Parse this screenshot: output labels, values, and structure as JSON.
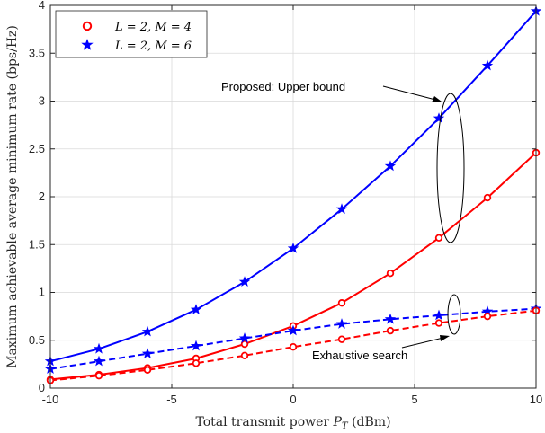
{
  "chart_data": {
    "type": "line",
    "title": "",
    "xlabel": "Total transmit power P_T (dBm)",
    "xlabel_parts": {
      "pre": "Total transmit power ",
      "var": "P",
      "sub": "T",
      "post": " (dBm)"
    },
    "ylabel": "Maximum achievable average minimum rate (bps/Hz)",
    "xlim": [
      -10,
      10
    ],
    "ylim": [
      0,
      4
    ],
    "xticks": [
      -10,
      -5,
      0,
      5,
      10
    ],
    "xtick_labels": [
      "-10",
      "-5",
      "0",
      "5",
      "10"
    ],
    "yticks": [
      0,
      0.5,
      1,
      1.5,
      2,
      2.5,
      3,
      3.5,
      4
    ],
    "ytick_labels": [
      "0",
      "0.5",
      "1",
      "1.5",
      "2",
      "2.5",
      "3",
      "3.5",
      "4"
    ],
    "grid": true,
    "legend_position": "top-left",
    "legend": [
      {
        "label": "L = 2, M = 4",
        "color": "#ff0000",
        "marker": "circle"
      },
      {
        "label": "L = 2, M = 6",
        "color": "#0000ff",
        "marker": "star"
      }
    ],
    "annotations": [
      {
        "text": "Proposed: Upper bound"
      },
      {
        "text": "Exhaustive search"
      }
    ],
    "x": [
      -10,
      -8,
      -6,
      -4,
      -2,
      0,
      2,
      4,
      6,
      8,
      10
    ],
    "series": [
      {
        "name": "L = 2, M = 6",
        "method": "Proposed: Upper bound",
        "color": "#0000ff",
        "marker": "star",
        "dash": false,
        "values": [
          0.28,
          0.41,
          0.59,
          0.82,
          1.11,
          1.46,
          1.87,
          2.32,
          2.82,
          3.37,
          3.94
        ]
      },
      {
        "name": "L = 2, M = 4",
        "method": "Proposed: Upper bound",
        "color": "#ff0000",
        "marker": "circle",
        "dash": false,
        "values": [
          0.09,
          0.14,
          0.21,
          0.31,
          0.46,
          0.65,
          0.89,
          1.2,
          1.57,
          1.99,
          2.46
        ]
      },
      {
        "name": "L = 2, M = 6",
        "method": "Exhaustive search",
        "color": "#0000ff",
        "marker": "star",
        "dash": true,
        "values": [
          0.2,
          0.28,
          0.36,
          0.44,
          0.52,
          0.6,
          0.67,
          0.72,
          0.76,
          0.8,
          0.83
        ]
      },
      {
        "name": "L = 2, M = 4",
        "method": "Exhaustive search",
        "color": "#ff0000",
        "marker": "circle",
        "dash": true,
        "values": [
          0.08,
          0.13,
          0.19,
          0.26,
          0.34,
          0.43,
          0.51,
          0.6,
          0.68,
          0.75,
          0.81
        ]
      }
    ]
  }
}
